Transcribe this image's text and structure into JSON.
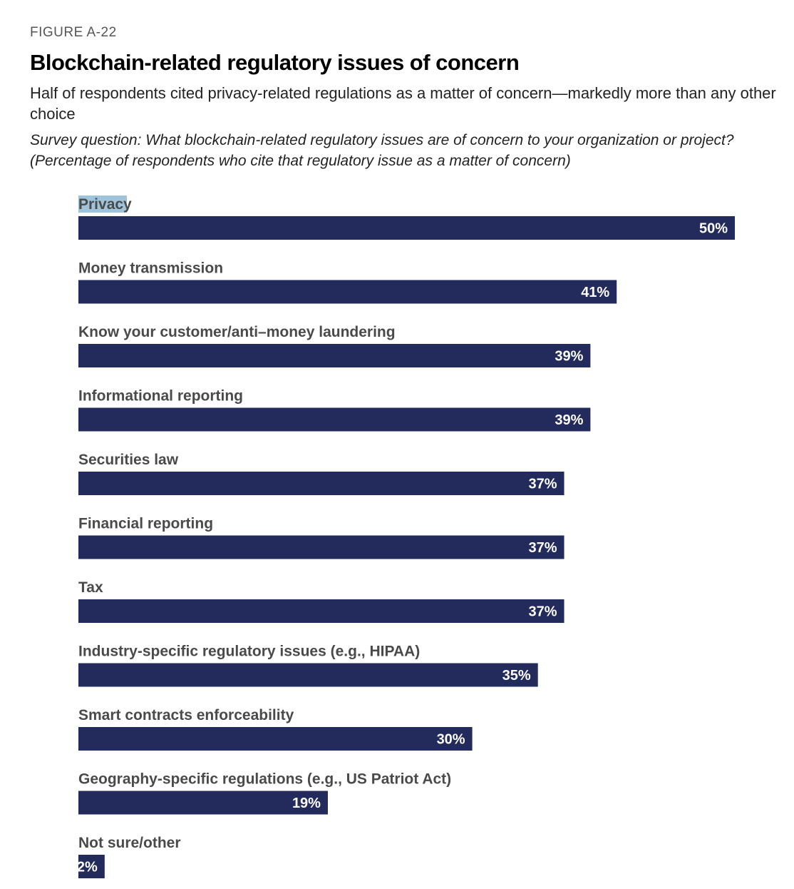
{
  "header": {
    "figure_label": "FIGURE A-22",
    "title": "Blockchain-related regulatory issues of concern",
    "subtitle": "Half of respondents cited privacy-related regulations as a matter of concern—markedly more than any other choice",
    "question": "Survey question: What blockchain-related regulatory issues are of concern to your organization or project? (Percentage of respondents who cite that regulatory issue as a matter of concern)"
  },
  "colors": {
    "bar": "#232b5d",
    "bar_label": "#ffffff",
    "category_label": "#4a4a4a",
    "highlight": "#9fc3d9"
  },
  "chart_data": {
    "type": "bar",
    "orientation": "horizontal",
    "categories": [
      "Privacy",
      "Money transmission",
      "Know your customer/anti–money laundering",
      "Informational reporting",
      "Securities law",
      "Financial reporting",
      "Tax",
      "Industry-specific regulatory issues (e.g., HIPAA)",
      "Smart contracts enforceability",
      "Geography-specific regulations (e.g., US Patriot Act)",
      "Not sure/other"
    ],
    "values": [
      50,
      41,
      39,
      39,
      37,
      37,
      37,
      35,
      30,
      19,
      2
    ],
    "value_labels": [
      "50%",
      "41%",
      "39%",
      "39%",
      "37%",
      "37%",
      "37%",
      "35%",
      "30%",
      "19%",
      "2%"
    ],
    "unit": "%",
    "highlighted_category": "Privacy",
    "xlim": [
      0,
      50
    ],
    "grid": false,
    "legend": "none"
  }
}
